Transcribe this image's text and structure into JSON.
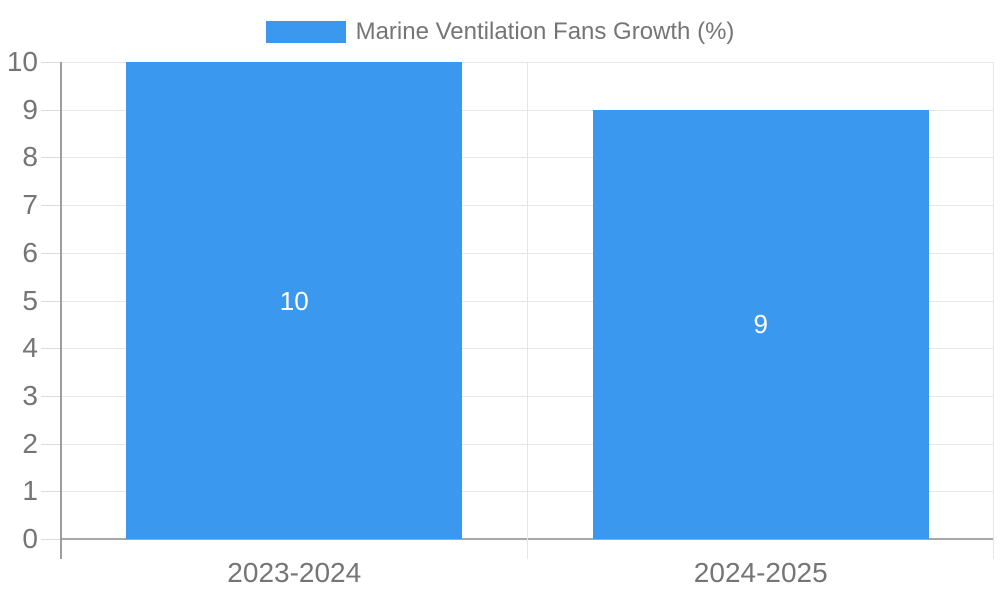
{
  "chart_data": {
    "type": "bar",
    "title": "Marine Ventilation Fans Growth (%)",
    "categories": [
      "2023-2024",
      "2024-2025"
    ],
    "series": [
      {
        "name": "Marine Ventilation Fans Growth (%)",
        "values": [
          10,
          9
        ]
      }
    ],
    "bar_value_labels": [
      "10",
      "9"
    ],
    "xlabel": "",
    "ylabel": "",
    "ylim": [
      0,
      10
    ],
    "yticks": [
      0,
      1,
      2,
      3,
      4,
      5,
      6,
      7,
      8,
      9,
      10
    ],
    "grid": true,
    "legend_position": "top-center",
    "bar_width_fraction": 0.72,
    "colors": {
      "bar": "#3a99ee",
      "text": "#757575",
      "bar_label": "#ffffff",
      "gridline": "#e6e6e6",
      "axis": "#a8a8a8",
      "background": "#ffffff"
    }
  }
}
